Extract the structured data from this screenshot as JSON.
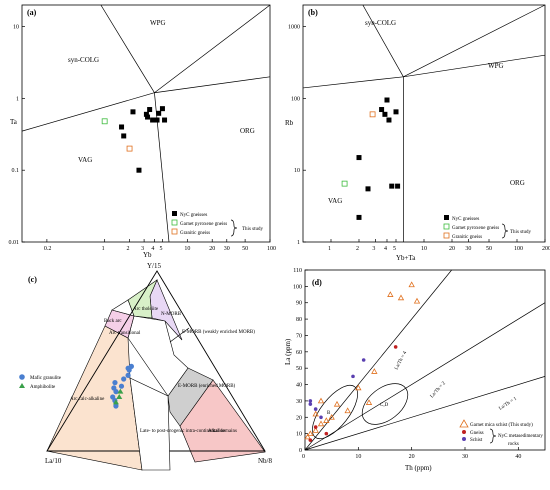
{
  "colors": {
    "sq_black": "#000000",
    "garnet_pyroxene": "#3dbb3d",
    "granitic": "#e0701e",
    "mafic_granulite": "#4a7fd0",
    "amphibolite": "#3aa04a",
    "d_garnet": "#e0701e",
    "d_gneiss": "#c02020",
    "d_schist": "#5a3fb0",
    "d_extra": "#8a3ec0",
    "region_arc_calc": "#fbe3cf",
    "region_alkaline": "#f7c7c7",
    "region_emorb": "#cfcfcf",
    "region_nmorb": "#e8d8f5",
    "region_arc_thol": "#d8f0c8",
    "region_arc_trans": "#f5cfe8",
    "region_backarc": "#ffffff"
  },
  "panels": {
    "a": {
      "label": "(a)",
      "xlabel": "Yb",
      "ylabel": "Ta",
      "xticks": [
        "0.2",
        "1",
        "2",
        "3",
        "4",
        "5",
        "10",
        "20",
        "30",
        "50",
        "100"
      ],
      "yticks": [
        "10",
        "1",
        "0.1",
        "0.01"
      ],
      "fields": [
        "WPG",
        "syn-COLG",
        "VAG",
        "ORG"
      ]
    },
    "b": {
      "label": "(b)",
      "xlabel": "Yb+Ta",
      "ylabel": "Rb",
      "xticks": [
        "1",
        "2",
        "3",
        "4",
        "5",
        "10",
        "20",
        "30",
        "50",
        "100",
        "200"
      ],
      "yticks": [
        "1000",
        "100",
        "10",
        "1"
      ],
      "fields": [
        "syn-COLG",
        "WPG",
        "VAG",
        "ORG"
      ]
    },
    "c": {
      "label": "(c)",
      "apex_top": "Y/15",
      "apex_left": "La/10",
      "apex_right": "Nb/8",
      "regions": {
        "back_arc": "Back arc",
        "arc_tholeiite": "Arc tholeiite",
        "n_morb": "N-MORB",
        "arc_transitional": "Arc transitional",
        "e_morb_weak": "E-MORB (weakly enriched MORB)",
        "e_morb_enriched": "E-MORB (enriched MORB)",
        "arc_calc_alkaline": "Arc calc-alkaline",
        "late_post": "Late- to post-orogenic intra-continental domains",
        "alkaline": "Alkaline"
      }
    },
    "d": {
      "label": "(d)",
      "xlabel": "Th (ppm)",
      "ylabel": "La (ppm)",
      "xticks": [
        "0",
        "10",
        "20",
        "30",
        "40"
      ],
      "yticks": [
        "0",
        "10",
        "20",
        "30",
        "40",
        "50",
        "60",
        "70",
        "80",
        "90",
        "100",
        "110"
      ],
      "line_labels": [
        "La/Th = 4",
        "La/Th = 2",
        "La/Th = 1"
      ],
      "ellipse_labels": [
        "B",
        "C,D"
      ]
    }
  },
  "legend_ab": {
    "nyc": "NyC gneisses",
    "garnet_pyroxene": "Garnet pyroxene gneiss",
    "granitic": "Granitic gneiss",
    "this_study": "This study"
  },
  "legend_c": {
    "mafic": "Mafic granulite",
    "amphibolite": "Amphibolite"
  },
  "legend_d": {
    "garnet_mica": "Garnet mica schist (This study)",
    "gneiss": "Gneiss",
    "schist": "Schist",
    "nyc_meta": "NyC metasedimentary",
    "rocks": "rocks"
  },
  "chart_data": [
    {
      "type": "scatter",
      "title": "",
      "xlabel": "Yb",
      "ylabel": "Ta",
      "x_scale": "log",
      "y_scale": "log",
      "xlim": [
        0.1,
        100
      ],
      "ylim": [
        0.01,
        20
      ],
      "series": [
        {
          "name": "NyC gneisses",
          "points": [
            [
              3.2,
              0.6
            ],
            [
              3.5,
              0.7
            ],
            [
              3.3,
              0.55
            ],
            [
              4.3,
              0.5
            ],
            [
              4.5,
              0.62
            ],
            [
              5.0,
              0.72
            ],
            [
              5.3,
              0.5
            ],
            [
              3.8,
              0.5
            ],
            [
              2.2,
              0.65
            ],
            [
              1.6,
              0.4
            ],
            [
              1.7,
              0.3
            ],
            [
              2.6,
              0.1
            ]
          ]
        },
        {
          "name": "Garnet pyroxene gneiss",
          "points": [
            [
              1.0,
              0.48
            ]
          ]
        },
        {
          "name": "Granitic gneiss",
          "points": [
            [
              2.0,
              0.2
            ]
          ]
        }
      ]
    },
    {
      "type": "scatter",
      "title": "",
      "xlabel": "Yb+Ta",
      "ylabel": "Rb",
      "x_scale": "log",
      "y_scale": "log",
      "xlim": [
        0.5,
        200
      ],
      "ylim": [
        1,
        2000
      ],
      "series": [
        {
          "name": "NyC gneisses",
          "points": [
            [
              3.5,
              70
            ],
            [
              3.8,
              60
            ],
            [
              4.0,
              95
            ],
            [
              4.2,
              50
            ],
            [
              5.0,
              65
            ],
            [
              2.0,
              15
            ],
            [
              2.5,
              5.5
            ],
            [
              4.5,
              6
            ],
            [
              5.2,
              6
            ],
            [
              2.0,
              2.2
            ]
          ]
        },
        {
          "name": "Garnet pyroxene gneiss",
          "points": [
            [
              1.4,
              6.5
            ]
          ]
        },
        {
          "name": "Granitic gneiss",
          "points": [
            [
              2.8,
              60
            ]
          ]
        }
      ]
    },
    {
      "type": "scatter",
      "title": "",
      "apices": [
        "Y/15",
        "La/10",
        "Nb/8"
      ],
      "series": [
        {
          "name": "Mafic granulite",
          "points": [
            [
              0.3,
              0.55,
              0.15
            ],
            [
              0.28,
              0.55,
              0.17
            ],
            [
              0.33,
              0.52,
              0.15
            ],
            [
              0.25,
              0.56,
              0.19
            ],
            [
              0.36,
              0.48,
              0.16
            ],
            [
              0.4,
              0.45,
              0.15
            ],
            [
              0.42,
              0.42,
              0.16
            ],
            [
              0.45,
              0.4,
              0.15
            ],
            [
              0.47,
              0.38,
              0.15
            ],
            [
              0.35,
              0.52,
              0.13
            ],
            [
              0.38,
              0.5,
              0.12
            ],
            [
              0.46,
              0.4,
              0.14
            ]
          ]
        },
        {
          "name": "Amphibolite",
          "points": [
            [
              0.3,
              0.52,
              0.18
            ],
            [
              0.33,
              0.5,
              0.17
            ],
            [
              0.27,
              0.55,
              0.18
            ]
          ]
        }
      ]
    },
    {
      "type": "scatter",
      "title": "",
      "xlabel": "Th (ppm)",
      "ylabel": "La (ppm)",
      "xlim": [
        0,
        45
      ],
      "ylim": [
        0,
        110
      ],
      "series": [
        {
          "name": "Garnet mica schist (This study)",
          "points": [
            [
              20,
              101
            ],
            [
              18,
              93
            ],
            [
              21,
              91
            ],
            [
              16,
              95
            ],
            [
              13,
              48
            ],
            [
              10,
              38
            ],
            [
              12,
              29
            ],
            [
              8,
              24
            ],
            [
              5,
              20
            ],
            [
              3,
              16
            ],
            [
              2,
              12
            ],
            [
              1,
              10
            ],
            [
              0.5,
              8
            ],
            [
              2,
              22
            ],
            [
              4,
              18
            ],
            [
              6,
              28
            ],
            [
              3,
              30
            ]
          ]
        },
        {
          "name": "Gneiss",
          "points": [
            [
              17,
              63
            ],
            [
              2,
              14
            ],
            [
              4,
              10
            ],
            [
              1,
              6
            ]
          ]
        },
        {
          "name": "Schist",
          "points": [
            [
              11,
              55
            ],
            [
              9,
              45
            ],
            [
              1,
              30
            ],
            [
              1,
              28
            ],
            [
              2,
              25
            ],
            [
              3,
              20
            ]
          ]
        }
      ]
    }
  ]
}
